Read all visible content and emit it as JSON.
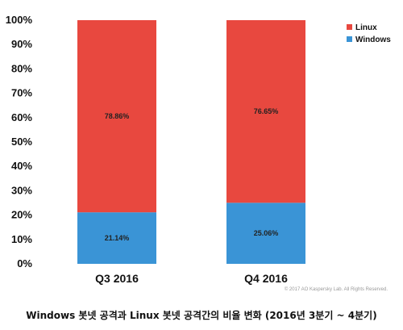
{
  "chart_data": {
    "type": "bar",
    "stacked": true,
    "categories": [
      "Q3 2016",
      "Q4 2016"
    ],
    "series": [
      {
        "name": "Windows",
        "color": "#3a94d6",
        "values": [
          21.14,
          25.06
        ],
        "labels": [
          "21.14%",
          "25.06%"
        ]
      },
      {
        "name": "Linux",
        "color": "#e8483f",
        "values": [
          78.86,
          76.65
        ],
        "labels": [
          "78.86%",
          "76.65%"
        ]
      }
    ],
    "yticks": [
      "0%",
      "10%",
      "20%",
      "30%",
      "40%",
      "50%",
      "60%",
      "70%",
      "80%",
      "90%",
      "100%"
    ],
    "ylim": [
      0,
      100
    ],
    "grid": false,
    "legend": "top-right",
    "xlabel": "",
    "ylabel": ""
  },
  "copyright": "© 2017 AO Kaspersky Lab. All Rights Reserved.",
  "caption": "Windows 봇넷 공격과 Linux 봇넷 공격간의 비율 변화 (2016년 3분기 ~ 4분기)"
}
